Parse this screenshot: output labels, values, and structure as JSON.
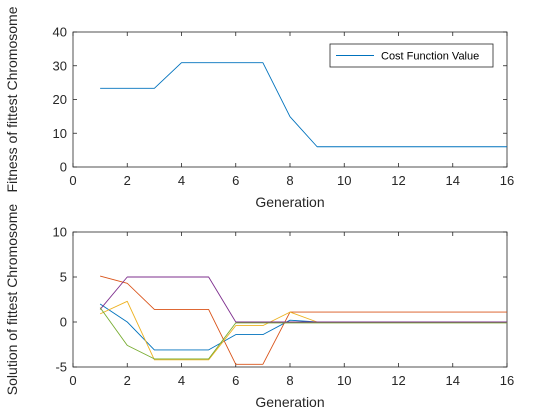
{
  "chart_data": [
    {
      "type": "line",
      "title": "",
      "xlabel": "Generation",
      "ylabel": "Fitness of fittest Chromosome",
      "xlim": [
        0,
        16
      ],
      "ylim": [
        0,
        40
      ],
      "xticks": [
        "0",
        "2",
        "4",
        "6",
        "8",
        "10",
        "12",
        "14",
        "16"
      ],
      "yticks": [
        "0",
        "10",
        "20",
        "30",
        "40"
      ],
      "grid": false,
      "legend_placement": "top-right",
      "series": [
        {
          "name": "Cost Function Value",
          "color": "#0072BD",
          "x": [
            1,
            2,
            3,
            4,
            5,
            6,
            7,
            8,
            9,
            10,
            11,
            12,
            13,
            14,
            15,
            16
          ],
          "y": [
            23.3,
            23.3,
            23.3,
            30.9,
            30.9,
            30.9,
            30.9,
            14.9,
            6.0,
            6.0,
            6.0,
            6.0,
            6.0,
            6.0,
            6.0,
            6.0
          ]
        }
      ]
    },
    {
      "type": "line",
      "title": "",
      "xlabel": "Generation",
      "ylabel": "Solution of fittest Chromosome",
      "xlim": [
        0,
        16
      ],
      "ylim": [
        -5,
        10
      ],
      "xticks": [
        "0",
        "2",
        "4",
        "6",
        "8",
        "10",
        "12",
        "14",
        "16"
      ],
      "yticks": [
        "-5",
        "0",
        "5",
        "10"
      ],
      "grid": false,
      "series": [
        {
          "color": "#0072BD",
          "x": [
            1,
            2,
            3,
            4,
            5,
            6,
            7,
            8,
            9,
            10,
            11,
            12,
            13,
            14,
            15,
            16
          ],
          "y": [
            2.0,
            0.0,
            -3.1,
            -3.1,
            -3.1,
            -1.4,
            -1.4,
            0.2,
            0.0,
            0.0,
            0.0,
            0.0,
            0.0,
            0.0,
            0.0,
            0.0
          ]
        },
        {
          "color": "#D95319",
          "x": [
            1,
            2,
            3,
            4,
            5,
            6,
            7,
            8,
            9,
            10,
            11,
            12,
            13,
            14,
            15,
            16
          ],
          "y": [
            5.1,
            4.3,
            1.4,
            1.4,
            1.4,
            -4.7,
            -4.7,
            1.1,
            1.1,
            1.1,
            1.1,
            1.1,
            1.1,
            1.1,
            1.1,
            1.1
          ]
        },
        {
          "color": "#EDB120",
          "x": [
            1,
            2,
            3,
            4,
            5,
            6,
            7,
            8,
            9,
            10,
            11,
            12,
            13,
            14,
            15,
            16
          ],
          "y": [
            0.9,
            2.3,
            -4.2,
            -4.2,
            -4.2,
            -0.4,
            -0.4,
            1.1,
            0.0,
            0.0,
            0.0,
            0.0,
            0.0,
            0.0,
            0.0,
            0.0
          ]
        },
        {
          "color": "#7E2F8E",
          "x": [
            1,
            2,
            3,
            4,
            5,
            6,
            7,
            8,
            9,
            10,
            11,
            12,
            13,
            14,
            15,
            16
          ],
          "y": [
            1.4,
            5.0,
            5.0,
            5.0,
            5.0,
            0.0,
            0.0,
            0.0,
            0.0,
            0.0,
            0.0,
            0.0,
            0.0,
            0.0,
            0.0,
            0.0
          ]
        },
        {
          "color": "#77AC30",
          "x": [
            1,
            2,
            3,
            4,
            5,
            6,
            7,
            8,
            9,
            10,
            11,
            12,
            13,
            14,
            15,
            16
          ],
          "y": [
            1.6,
            -2.6,
            -4.1,
            -4.1,
            -4.1,
            -0.1,
            -0.1,
            -0.1,
            -0.1,
            -0.1,
            -0.1,
            -0.1,
            -0.1,
            -0.1,
            -0.1,
            -0.1
          ]
        }
      ]
    }
  ]
}
